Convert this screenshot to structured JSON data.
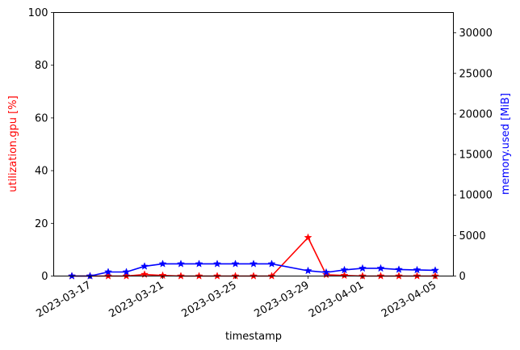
{
  "chart_data": {
    "type": "line",
    "xlabel": "timestamp",
    "ylabel_left": "utilization.gpu [%]",
    "ylabel_right": "memory.used [MiB]",
    "ylim_left": [
      0,
      100
    ],
    "ylim_right": [
      0,
      32510
    ],
    "yticks_left": [
      0,
      20,
      40,
      60,
      80,
      100
    ],
    "yticks_right": [
      0,
      5000,
      10000,
      15000,
      20000,
      25000,
      30000
    ],
    "xlim": [
      "2023-03-15",
      "2023-04-06"
    ],
    "xticks": [
      "2023-03-17",
      "2023-03-21",
      "2023-03-25",
      "2023-03-29",
      "2023-04-01",
      "2023-04-05"
    ],
    "colors": {
      "left": "#ff0000",
      "right": "#0000ff"
    },
    "marker": "star",
    "series": [
      {
        "axis": "left",
        "color": "#ff0000",
        "x": [
          "2023-03-16",
          "2023-03-17",
          "2023-03-18",
          "2023-03-19",
          "2023-03-20",
          "2023-03-21",
          "2023-03-22",
          "2023-03-23",
          "2023-03-24",
          "2023-03-25",
          "2023-03-26",
          "2023-03-27",
          "2023-03-29",
          "2023-03-30",
          "2023-03-31",
          "2023-04-01",
          "2023-04-02",
          "2023-04-03",
          "2023-04-04",
          "2023-04-05"
        ],
        "values": [
          0,
          0,
          0,
          0,
          0.6,
          0.2,
          0,
          0,
          0,
          0,
          0,
          0,
          14.6,
          0.5,
          0.2,
          0,
          0,
          0,
          0,
          0
        ]
      },
      {
        "axis": "right",
        "color": "#0000ff",
        "x": [
          "2023-03-16",
          "2023-03-17",
          "2023-03-18",
          "2023-03-19",
          "2023-03-20",
          "2023-03-21",
          "2023-03-22",
          "2023-03-23",
          "2023-03-24",
          "2023-03-25",
          "2023-03-26",
          "2023-03-27",
          "2023-03-29",
          "2023-03-30",
          "2023-03-31",
          "2023-04-01",
          "2023-04-02",
          "2023-04-03",
          "2023-04-04",
          "2023-04-05"
        ],
        "values": [
          0,
          0,
          500,
          500,
          1200,
          1500,
          1500,
          1500,
          1500,
          1500,
          1500,
          1500,
          650,
          450,
          750,
          950,
          950,
          800,
          750,
          700
        ]
      }
    ]
  }
}
